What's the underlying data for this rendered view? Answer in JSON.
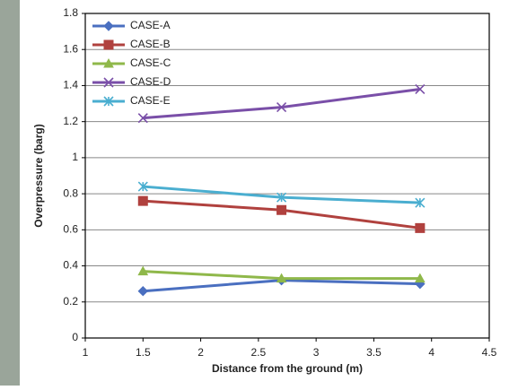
{
  "chart_data": {
    "type": "line",
    "x_label": "Distance from the ground (m)",
    "y_label": "Overpressure (barg)",
    "xlim": [
      1,
      4.5
    ],
    "xticks": [
      1,
      1.5,
      2,
      2.5,
      3,
      3.5,
      4,
      4.5
    ],
    "ylim": [
      0,
      1.8
    ],
    "yticks": [
      0,
      0.2,
      0.4,
      0.6,
      0.8,
      1,
      1.2,
      1.4,
      1.6,
      1.8
    ],
    "grid": true,
    "legend": "upper-left",
    "x": [
      1.5,
      2.7,
      3.9
    ],
    "series": [
      {
        "name": "CASE-A",
        "color": "#4a6fc0",
        "marker": "diamond",
        "values": [
          0.26,
          0.32,
          0.3
        ]
      },
      {
        "name": "CASE-B",
        "color": "#b0413e",
        "marker": "square",
        "values": [
          0.76,
          0.71,
          0.61
        ]
      },
      {
        "name": "CASE-C",
        "color": "#8fb84a",
        "marker": "triangle",
        "values": [
          0.37,
          0.33,
          0.33
        ]
      },
      {
        "name": "CASE-D",
        "color": "#7a4fa8",
        "marker": "x",
        "values": [
          1.22,
          1.28,
          1.38
        ]
      },
      {
        "name": "CASE-E",
        "color": "#4aaed0",
        "marker": "star",
        "values": [
          0.84,
          0.78,
          0.75
        ]
      }
    ]
  }
}
